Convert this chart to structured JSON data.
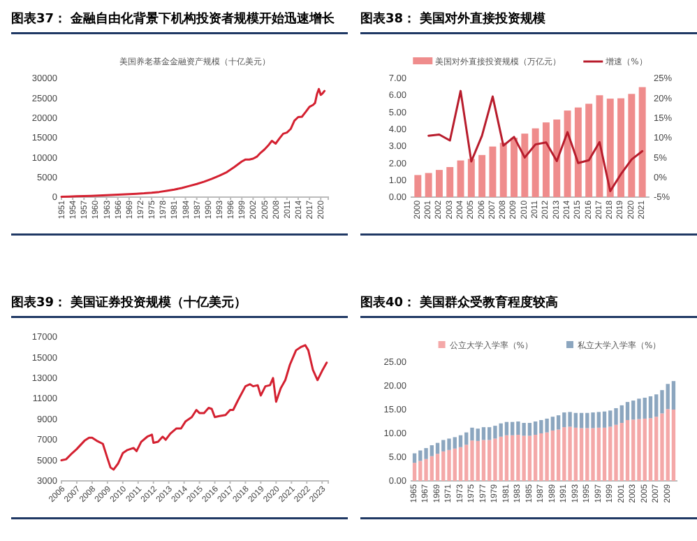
{
  "chart_data": [
    {
      "type": "line",
      "title": "图表37：  金融自由化背景下机构投资者规模开始迅速增长",
      "subtitle": "美国养老基金金融资产规模（十亿美元）",
      "x": [
        1951,
        1953,
        1955,
        1957,
        1959,
        1961,
        1963,
        1965,
        1967,
        1969,
        1971,
        1973,
        1975,
        1977,
        1979,
        1981,
        1983,
        1985,
        1987,
        1989,
        1991,
        1993,
        1995,
        1997,
        1999,
        2000,
        2001,
        2002,
        2003,
        2004,
        2005,
        2006,
        2007,
        2008,
        2009,
        2010,
        2011,
        2012,
        2013,
        2014,
        2015,
        2016,
        2017,
        2018,
        2018.5,
        2019,
        2019.5,
        2020,
        2020.5,
        2021
      ],
      "series": [
        {
          "color": "#d42030",
          "values": [
            100,
            150,
            200,
            250,
            320,
            400,
            480,
            560,
            650,
            750,
            850,
            950,
            1100,
            1300,
            1600,
            1900,
            2300,
            2800,
            3300,
            3900,
            4600,
            5400,
            6300,
            7600,
            9000,
            9500,
            9500,
            9700,
            10200,
            11200,
            12000,
            13000,
            14200,
            13500,
            14800,
            16000,
            16300,
            17200,
            19300,
            20200,
            20300,
            21500,
            22800,
            23300,
            23800,
            26000,
            27300,
            25800,
            26200,
            26800
          ]
        }
      ],
      "xlim": [
        1951,
        2022
      ],
      "xticks": [
        1951,
        1954,
        1957,
        1960,
        1963,
        1966,
        1969,
        1972,
        1975,
        1978,
        1981,
        1984,
        1987,
        1990,
        1993,
        1996,
        1999,
        2002,
        2005,
        2008,
        2011,
        2014,
        2017,
        2020
      ],
      "ylim": [
        0,
        30000
      ],
      "yticks": [
        0,
        5000,
        10000,
        15000,
        20000,
        25000,
        30000
      ],
      "grid": false,
      "legend": false,
      "marker": "none",
      "line_style": "solid"
    },
    {
      "type": "bar",
      "title": "图表38：  美国对外直接投资规模",
      "legend": "top",
      "categories": [
        "2000",
        "2001",
        "2002",
        "2003",
        "2004",
        "2005",
        "2006",
        "2007",
        "2008",
        "2009",
        "2010",
        "2011",
        "2012",
        "2013",
        "2014",
        "2015",
        "2016",
        "2017",
        "2018",
        "2019",
        "2020",
        "2021"
      ],
      "series": [
        {
          "name": "美国对外直接投资规模（万亿元）",
          "type": "bar",
          "color": "#ef8c8c",
          "values": [
            1.3,
            1.42,
            1.6,
            1.77,
            2.16,
            2.25,
            2.48,
            2.98,
            3.2,
            3.5,
            3.74,
            4.05,
            4.4,
            4.57,
            5.1,
            5.28,
            5.5,
            6.0,
            5.8,
            5.82,
            6.08,
            6.48
          ]
        },
        {
          "name": "增速（%）",
          "type": "line",
          "axis": "y2",
          "color": "#b81c2c",
          "values": [
            null,
            10.5,
            10.8,
            9.3,
            21.8,
            4.0,
            10.5,
            20.4,
            8.0,
            10.2,
            5.0,
            8.3,
            8.8,
            4.1,
            11.4,
            3.6,
            4.3,
            8.9,
            -3.5,
            0.8,
            4.5,
            6.6
          ]
        }
      ],
      "ylim": [
        0,
        7
      ],
      "yticks": [
        {
          "value": 0,
          "label": "0.00"
        },
        {
          "value": 1,
          "label": "1.00"
        },
        {
          "value": 2,
          "label": "2.00"
        },
        {
          "value": 3,
          "label": "3.00"
        },
        {
          "value": 4,
          "label": "4.00"
        },
        {
          "value": 5,
          "label": "5.00"
        },
        {
          "value": 6,
          "label": "6.00"
        },
        {
          "value": 7,
          "label": "7.00"
        }
      ],
      "y2lim": [
        -5,
        25
      ],
      "y2ticks": [
        {
          "value": -5,
          "label": "-5%"
        },
        {
          "value": 0,
          "label": "0%"
        },
        {
          "value": 5,
          "label": "5%"
        },
        {
          "value": 10,
          "label": "10%"
        },
        {
          "value": 15,
          "label": "15%"
        },
        {
          "value": 20,
          "label": "20%"
        },
        {
          "value": 25,
          "label": "25%"
        }
      ],
      "grid": false,
      "marker": "none",
      "line_style": "solid"
    },
    {
      "type": "line",
      "title": "图表39：  美国证券投资规模（十亿美元）",
      "x": [
        2006.0,
        2006.3,
        2006.7,
        2007.0,
        2007.5,
        2007.8,
        2008.0,
        2008.3,
        2008.7,
        2009.0,
        2009.2,
        2009.4,
        2009.7,
        2010.0,
        2010.3,
        2010.7,
        2010.9,
        2011.2,
        2011.6,
        2011.9,
        2012.0,
        2012.3,
        2012.6,
        2012.8,
        2013.1,
        2013.5,
        2013.8,
        2014.1,
        2014.5,
        2014.8,
        2015.0,
        2015.3,
        2015.6,
        2015.8,
        2016.0,
        2016.3,
        2016.7,
        2017.0,
        2017.2,
        2017.5,
        2018.0,
        2018.3,
        2018.5,
        2018.8,
        2019.0,
        2019.3,
        2019.6,
        2019.8,
        2020.0,
        2020.3,
        2020.6,
        2020.9,
        2021.3,
        2021.6,
        2021.9,
        2022.1,
        2022.4,
        2022.7,
        2023.0,
        2023.3
      ],
      "series": [
        {
          "color": "#d42030",
          "values": [
            5000,
            5100,
            5700,
            6100,
            6900,
            7200,
            7200,
            6900,
            6600,
            5200,
            4300,
            4100,
            4700,
            5700,
            6000,
            6200,
            5900,
            6800,
            7300,
            7500,
            6700,
            6800,
            7300,
            7000,
            7600,
            8100,
            8100,
            8800,
            9200,
            9900,
            9600,
            9600,
            10100,
            10000,
            9200,
            9300,
            9400,
            9900,
            9900,
            10800,
            12200,
            12400,
            12200,
            12300,
            11300,
            12200,
            12300,
            13000,
            10700,
            12000,
            12800,
            14300,
            15700,
            16000,
            16200,
            15700,
            13800,
            12800,
            13700,
            14500
          ]
        }
      ],
      "xlim": [
        2006,
        2023.4
      ],
      "xticks": [
        2006,
        2007,
        2008,
        2009,
        2010,
        2011,
        2012,
        2013,
        2014,
        2015,
        2016,
        2017,
        2018,
        2019,
        2020,
        2021,
        2022,
        2023
      ],
      "ylim": [
        3000,
        17000
      ],
      "yticks": [
        3000,
        5000,
        7000,
        9000,
        11000,
        13000,
        15000,
        17000
      ],
      "grid": false,
      "legend": false,
      "marker": "none",
      "line_style": "solid"
    },
    {
      "type": "bar",
      "stacked": true,
      "title": "图表40：  美国群众受教育程度较高",
      "legend": "top",
      "categories": [
        "1965",
        null,
        "1967",
        null,
        "1969",
        null,
        "1971",
        null,
        "1973",
        null,
        "1975",
        null,
        "1977",
        null,
        "1979",
        null,
        "1981",
        null,
        "1983",
        null,
        "1985",
        null,
        "1987",
        null,
        "1989",
        null,
        "1991",
        null,
        "1993",
        null,
        "1995",
        null,
        "1997",
        null,
        "1999",
        null,
        "2001",
        null,
        "2003",
        null,
        "2005",
        null,
        "2007",
        null,
        "2009",
        null
      ],
      "series": [
        {
          "name": "公立大学入学率（%）",
          "color": "#f4a8a8",
          "values": [
            3.8,
            4.2,
            4.6,
            5.2,
            5.7,
            6.2,
            6.5,
            6.8,
            7.1,
            7.6,
            8.5,
            8.4,
            8.6,
            8.6,
            8.9,
            9.3,
            9.6,
            9.6,
            9.7,
            9.5,
            9.5,
            9.7,
            10.0,
            10.2,
            10.6,
            10.8,
            11.3,
            11.4,
            11.2,
            11.1,
            11.1,
            11.1,
            11.2,
            11.2,
            11.4,
            11.8,
            12.2,
            12.8,
            12.9,
            13.0,
            13.1,
            13.2,
            13.5,
            14.2,
            15.1,
            15.0
          ]
        },
        {
          "name": "私立大学入学率（%）",
          "color": "#8ca6bf",
          "values": [
            2.0,
            2.2,
            2.3,
            2.3,
            2.3,
            2.4,
            2.4,
            2.4,
            2.5,
            2.6,
            2.7,
            2.6,
            2.7,
            2.7,
            2.7,
            2.8,
            2.8,
            2.8,
            2.8,
            2.7,
            2.7,
            2.8,
            2.8,
            2.9,
            2.9,
            3.0,
            3.1,
            3.1,
            3.1,
            3.2,
            3.2,
            3.3,
            3.3,
            3.4,
            3.4,
            3.5,
            3.7,
            3.8,
            4.0,
            4.3,
            4.4,
            4.6,
            4.7,
            4.9,
            5.3,
            6.0
          ]
        }
      ],
      "ylim": [
        0,
        25
      ],
      "yticks": [
        {
          "value": 0,
          "label": "0.00"
        },
        {
          "value": 5,
          "label": "5.00"
        },
        {
          "value": 10,
          "label": "10.00"
        },
        {
          "value": 15,
          "label": "15.00"
        },
        {
          "value": 20,
          "label": "20.00"
        },
        {
          "value": 25,
          "label": "25.00"
        }
      ],
      "grid": false
    }
  ]
}
